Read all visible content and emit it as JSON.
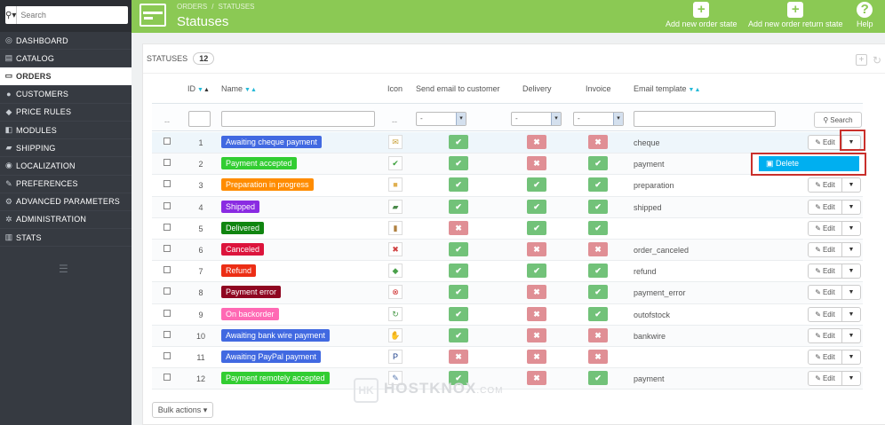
{
  "sidebar": {
    "search_placeholder": "Search",
    "items": [
      {
        "label": "DASHBOARD",
        "icon": "dashboard-icon",
        "glyph": "◎"
      },
      {
        "label": "CATALOG",
        "icon": "catalog-icon",
        "glyph": "▤"
      },
      {
        "label": "ORDERS",
        "icon": "orders-icon",
        "glyph": "▭",
        "active": true
      },
      {
        "label": "CUSTOMERS",
        "icon": "customers-icon",
        "glyph": "●"
      },
      {
        "label": "PRICE RULES",
        "icon": "price-rules-icon",
        "glyph": "◆"
      },
      {
        "label": "MODULES",
        "icon": "modules-icon",
        "glyph": "◧"
      },
      {
        "label": "SHIPPING",
        "icon": "shipping-icon",
        "glyph": "▰"
      },
      {
        "label": "LOCALIZATION",
        "icon": "localization-icon",
        "glyph": "◉"
      },
      {
        "label": "PREFERENCES",
        "icon": "preferences-icon",
        "glyph": "✎"
      },
      {
        "label": "ADVANCED PARAMETERS",
        "icon": "advanced-parameters-icon",
        "glyph": "⚙"
      },
      {
        "label": "ADMINISTRATION",
        "icon": "administration-icon",
        "glyph": "✲"
      },
      {
        "label": "STATS",
        "icon": "stats-icon",
        "glyph": "▥"
      }
    ]
  },
  "header": {
    "breadcrumb_1": "ORDERS",
    "breadcrumb_sep": "/",
    "breadcrumb_2": "STATUSES",
    "title": "Statuses",
    "add_order_state": "Add new order state",
    "add_return_state": "Add new order return state",
    "help": "Help"
  },
  "panel": {
    "heading": "STATUSES",
    "count": "12"
  },
  "table": {
    "headers": {
      "id": "ID",
      "name": "Name",
      "icon": "Icon",
      "send_email": "Send email to customer",
      "delivery": "Delivery",
      "invoice": "Invoice",
      "email_template": "Email template"
    },
    "filter_dash": "--",
    "filter_select_value": "-",
    "search_label": "Search",
    "edit_label": "Edit",
    "rows": [
      {
        "id": "1",
        "name": "Awaiting cheque payment",
        "color": "#4169e1",
        "icon_glyph": "✉",
        "icon_color": "#c9a13b",
        "email": true,
        "delivery": false,
        "invoice": false,
        "template": "cheque"
      },
      {
        "id": "2",
        "name": "Payment accepted",
        "color": "#32cd32",
        "icon_glyph": "✔",
        "icon_color": "#3a9f3a",
        "email": true,
        "delivery": false,
        "invoice": true,
        "template": "payment"
      },
      {
        "id": "3",
        "name": "Preparation in progress",
        "color": "#ff8c00",
        "icon_glyph": "■",
        "icon_color": "#e0b050",
        "email": true,
        "delivery": true,
        "invoice": true,
        "template": "preparation"
      },
      {
        "id": "4",
        "name": "Shipped",
        "color": "#8a2be2",
        "icon_glyph": "▰",
        "icon_color": "#4a8a4a",
        "email": true,
        "delivery": true,
        "invoice": true,
        "template": "shipped"
      },
      {
        "id": "5",
        "name": "Delivered",
        "color": "#108510",
        "icon_glyph": "▮",
        "icon_color": "#b08040",
        "email": false,
        "delivery": true,
        "invoice": true,
        "template": ""
      },
      {
        "id": "6",
        "name": "Canceled",
        "color": "#dc143c",
        "icon_glyph": "✖",
        "icon_color": "#d04040",
        "email": true,
        "delivery": false,
        "invoice": false,
        "template": "order_canceled"
      },
      {
        "id": "7",
        "name": "Refund",
        "color": "#ec2e15",
        "icon_glyph": "◆",
        "icon_color": "#4aa04a",
        "email": true,
        "delivery": true,
        "invoice": true,
        "template": "refund"
      },
      {
        "id": "8",
        "name": "Payment error",
        "color": "#8f0621",
        "icon_glyph": "⊗",
        "icon_color": "#d03030",
        "email": true,
        "delivery": false,
        "invoice": true,
        "template": "payment_error"
      },
      {
        "id": "9",
        "name": "On backorder",
        "color": "#ff69b4",
        "icon_glyph": "↻",
        "icon_color": "#4a9a4a",
        "email": true,
        "delivery": false,
        "invoice": true,
        "template": "outofstock"
      },
      {
        "id": "10",
        "name": "Awaiting bank wire payment",
        "color": "#4169e1",
        "icon_glyph": "✋",
        "icon_color": "#e0b020",
        "email": true,
        "delivery": false,
        "invoice": false,
        "template": "bankwire"
      },
      {
        "id": "11",
        "name": "Awaiting PayPal payment",
        "color": "#4169e1",
        "icon_glyph": "P",
        "icon_color": "#1a3d8a",
        "email": false,
        "delivery": false,
        "invoice": false,
        "template": ""
      },
      {
        "id": "12",
        "name": "Payment remotely accepted",
        "color": "#32cd32",
        "icon_glyph": "✎",
        "icon_color": "#5a7ab0",
        "email": true,
        "delivery": false,
        "invoice": true,
        "template": "payment"
      }
    ]
  },
  "dropdown": {
    "delete_label": "Delete"
  },
  "bulk_actions_label": "Bulk actions",
  "watermark": {
    "logo": "HK",
    "text": "HOSTKNOX",
    "tld": ".COM"
  },
  "colors": {
    "header_green": "#8bc954",
    "sidebar_dark": "#363a41",
    "yes_green": "#72c279",
    "no_red": "#e08f95",
    "accent_cyan": "#00aff0",
    "highlight_red": "#c9302c"
  }
}
